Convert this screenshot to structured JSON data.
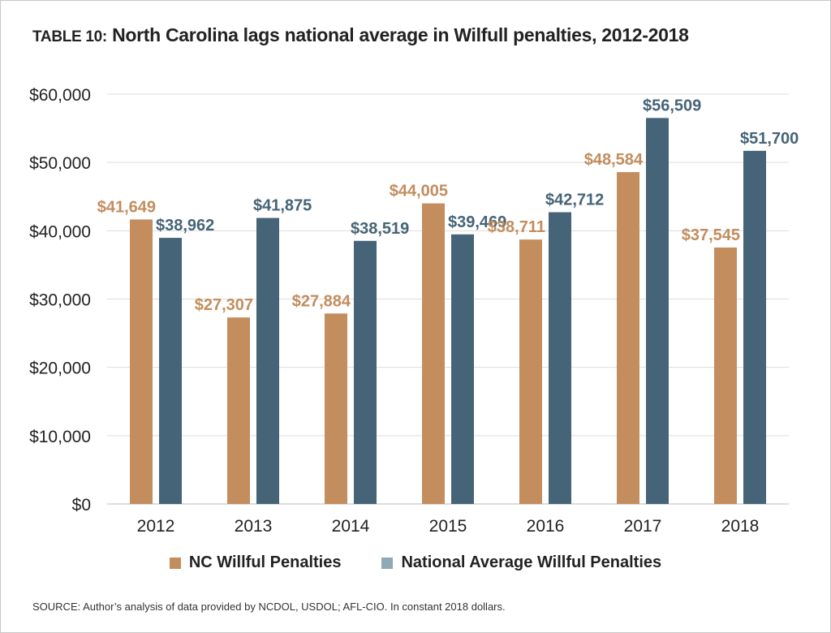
{
  "title": {
    "prefix": "TABLE 10:",
    "text": "North Carolina lags national average in Wilfull penalties, 2012-2018"
  },
  "source": "SOURCE: Author’s analysis of data provided by NCDOL, USDOL; AFL-CIO. In constant 2018 dollars.",
  "legend": {
    "nc": "NC Willful Penalties",
    "national": "National Average Willful Penalties"
  },
  "colors": {
    "nc": "#c38d5e",
    "national": "#456478",
    "national_swatch": "#8fa9b5",
    "grid": "#dddddd",
    "axis_text": "#222222"
  },
  "chart_data": {
    "type": "bar",
    "categories": [
      "2012",
      "2013",
      "2014",
      "2015",
      "2016",
      "2017",
      "2018"
    ],
    "series": [
      {
        "name": "NC Willful Penalties",
        "values": [
          41649,
          27307,
          27884,
          44005,
          38711,
          48584,
          37545
        ],
        "labels": [
          "$41,649",
          "$27,307",
          "$27,884",
          "$44,005",
          "$38,711",
          "$48,584",
          "$37,545"
        ]
      },
      {
        "name": "National Average Willful Penalties",
        "values": [
          38962,
          41875,
          38519,
          39469,
          42712,
          56509,
          51700
        ],
        "labels": [
          "$38,962",
          "$41,875",
          "$38,519",
          "$39,469",
          "$42,712",
          "$56,509",
          "$51,700"
        ]
      }
    ],
    "ylim": [
      0,
      60000
    ],
    "yticks": [
      0,
      10000,
      20000,
      30000,
      40000,
      50000,
      60000
    ],
    "ytick_labels": [
      "$0",
      "$10,000",
      "$20,000",
      "$30,000",
      "$40,000",
      "$50,000",
      "$60,000"
    ],
    "grid": true,
    "legend_position": "bottom"
  }
}
